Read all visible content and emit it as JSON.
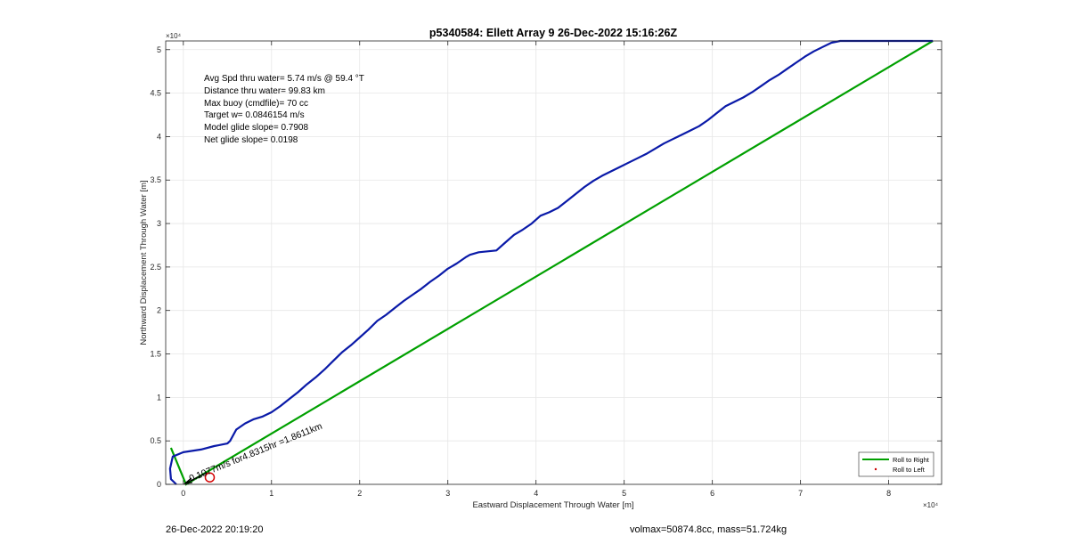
{
  "footer": {
    "left": "26-Dec-2022 20:19:20",
    "right": "volmax=50874.8cc, mass=51.724kg"
  },
  "chart_data": {
    "type": "line",
    "title": "p5340584: Ellett Array 9 26-Dec-2022 15:16:26Z",
    "xlabel": "Eastward Displacement Through Water [m]",
    "ylabel": "Northward Displacement Through Water [m]",
    "x_exponent_label": "×10⁴",
    "y_exponent_label": "×10⁴",
    "xlim": [
      -2000,
      86000
    ],
    "ylim": [
      0,
      51000
    ],
    "x_ticks": [
      0,
      10000,
      20000,
      30000,
      40000,
      50000,
      60000,
      70000,
      80000
    ],
    "x_tick_labels": [
      "0",
      "1",
      "2",
      "3",
      "4",
      "5",
      "6",
      "7",
      "8"
    ],
    "y_ticks": [
      0,
      5000,
      10000,
      15000,
      20000,
      25000,
      30000,
      35000,
      40000,
      45000,
      50000
    ],
    "y_tick_labels": [
      "0",
      "0.5",
      "1",
      "1.5",
      "2",
      "2.5",
      "3",
      "3.5",
      "4",
      "4.5",
      "5"
    ],
    "grid": true,
    "legend_position": "bottom-right",
    "annotations": [
      "Avg Spd thru water=  5.74 m/s @  59.4 °T",
      "Distance thru water= 99.83 km",
      "Max buoy (cmdfile)= 70 cc",
      "Target w= 0.0846154 m/s",
      "Model glide slope= 0.7908",
      "Net glide slope= 0.0198"
    ],
    "current_label": "0.1077m/s for4.8315hr =1.8611km",
    "current_vector": {
      "x": [
        0,
        0,
        1300
      ],
      "y": [
        0,
        0,
        750
      ]
    },
    "current_marker": {
      "x": 3000,
      "y": 800
    },
    "colors": {
      "roll_right": "#00a000",
      "track": "#0a1aa8",
      "roll_left": "#cc0000",
      "marker": "#d40000",
      "arrow": "#000000"
    },
    "series": [
      {
        "name": "Roll to Right",
        "x": [
          -1400,
          300,
          85000
        ],
        "y": [
          4200,
          0,
          51000
        ]
      },
      {
        "name": "Roll to Left",
        "x": [],
        "y": []
      },
      {
        "x": [
          -800,
          -1400,
          -1500,
          -1200,
          0,
          2000,
          3500,
          4000,
          4500,
          5000,
          5300,
          6000,
          7000,
          8000,
          9000,
          10000,
          11000,
          12000,
          13000,
          14000,
          15000,
          16000,
          17000,
          18000,
          19000,
          20000,
          21000,
          22000,
          23000,
          24000,
          25000,
          26000,
          27000,
          28000,
          29000,
          30000,
          31000,
          32000,
          32500,
          33500,
          34500,
          35500,
          36500,
          37500,
          38500,
          39500,
          40500,
          41500,
          42500,
          43500,
          44500,
          45500,
          46500,
          47500,
          48500,
          49500,
          50500,
          51500,
          52500,
          53500,
          54500,
          55500,
          56500,
          57500,
          58500,
          59500,
          60500,
          61500,
          62500,
          63500,
          64500,
          65500,
          66500,
          67500,
          68500,
          69500,
          70500,
          71500,
          72500,
          73500,
          74500,
          75500,
          76500,
          77500,
          78500,
          79500,
          80500,
          81500,
          82500,
          83500,
          84500,
          85000
        ],
        "y": [
          0,
          600,
          1800,
          3200,
          3700,
          4000,
          4400,
          4500,
          4600,
          4700,
          5000,
          6300,
          7000,
          7500,
          7800,
          8300,
          9000,
          9800,
          10600,
          11500,
          12300,
          13200,
          14200,
          15200,
          16000,
          16900,
          17800,
          18800,
          19500,
          20300,
          21100,
          21800,
          22500,
          23300,
          24000,
          24800,
          25400,
          26100,
          26400,
          26700,
          26800,
          26900,
          27800,
          28700,
          29300,
          30000,
          30900,
          31300,
          31800,
          32600,
          33400,
          34200,
          34900,
          35500,
          36000,
          36500,
          37000,
          37500,
          38000,
          38600,
          39200,
          39700,
          40200,
          40700,
          41200,
          41900,
          42700,
          43500,
          44000,
          44500,
          45100,
          45800,
          46500,
          47100,
          47800,
          48500,
          49200,
          49800,
          50300,
          50800,
          51000,
          51000,
          51000,
          51000,
          51000,
          51000,
          51000,
          51000,
          51000,
          51000,
          51000,
          51000
        ]
      }
    ]
  }
}
